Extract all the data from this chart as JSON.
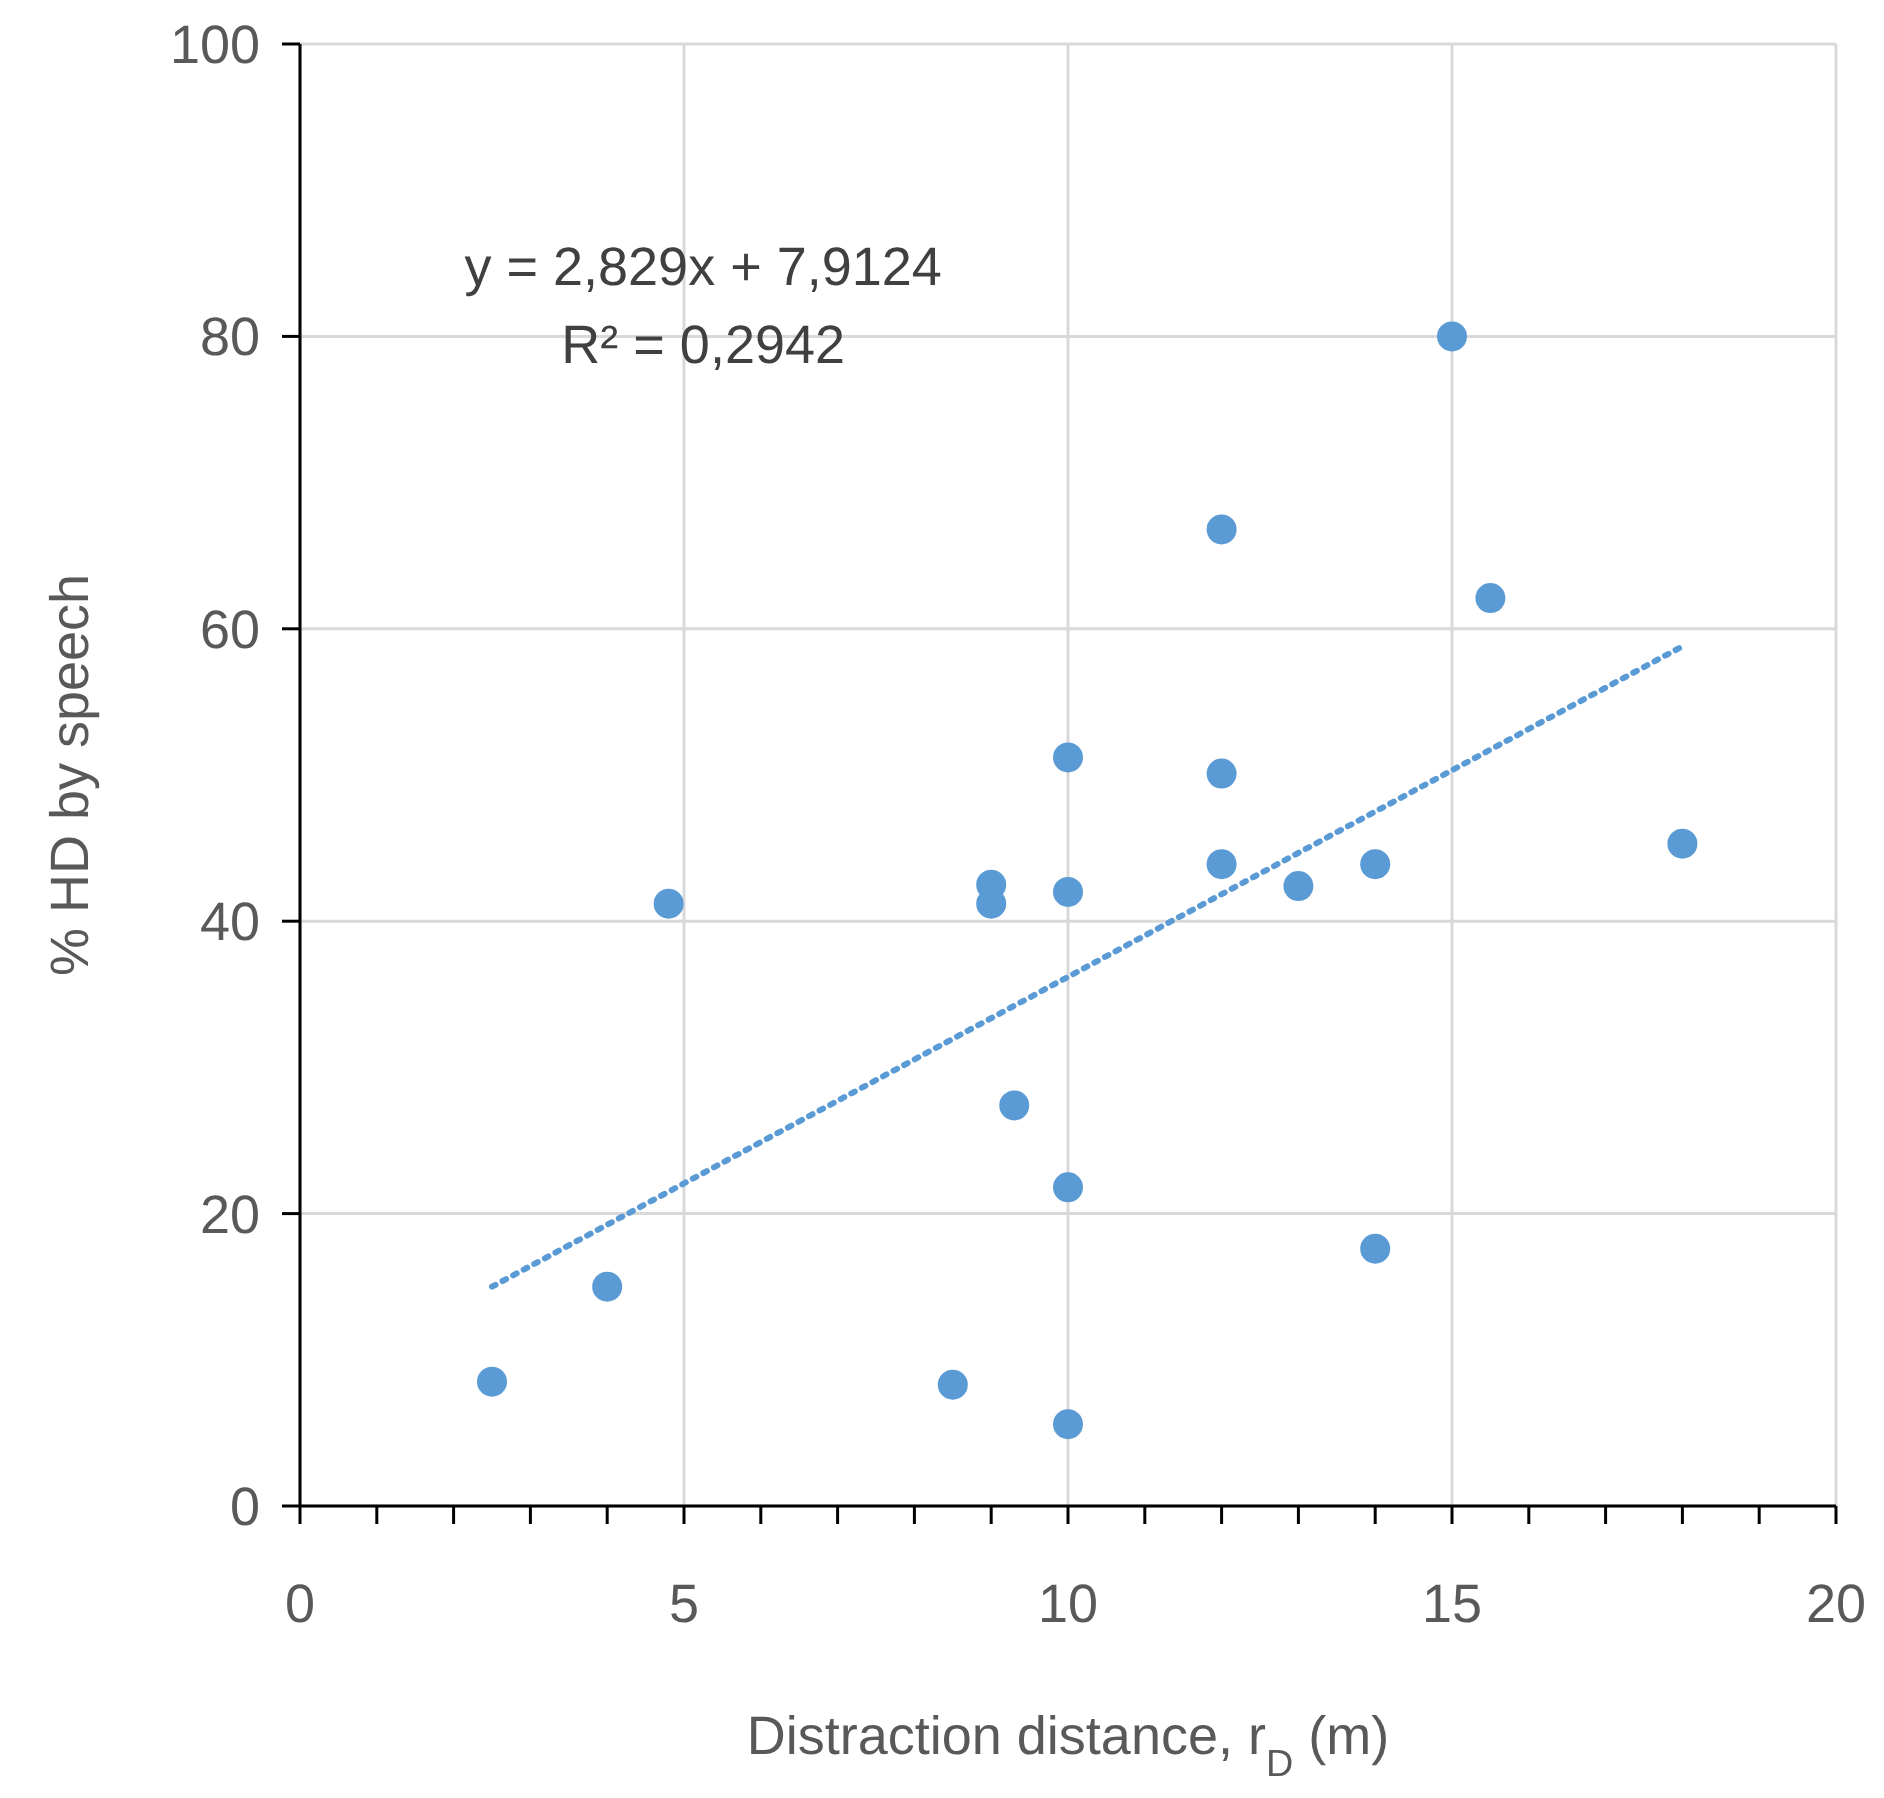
{
  "chart_data": {
    "type": "scatter",
    "xlabel": "Distraction distance, r$_{D}$ (m)",
    "ylabel": "% HD by speech",
    "annotations": [
      "y = 2,829x + 7,9124",
      "R² = 0,2942"
    ],
    "xlim": [
      0,
      20
    ],
    "ylim": [
      0,
      100
    ],
    "xticks": [
      0,
      {
        "value": 1,
        "label": null
      },
      {
        "value": 2,
        "label": null
      },
      {
        "value": 3,
        "label": null
      },
      {
        "value": 4,
        "label": null
      },
      5,
      {
        "value": 6,
        "label": null
      },
      {
        "value": 7,
        "label": null
      },
      {
        "value": 8,
        "label": null
      },
      {
        "value": 9,
        "label": null
      },
      10,
      {
        "value": 11,
        "label": null
      },
      {
        "value": 12,
        "label": null
      },
      {
        "value": 13,
        "label": null
      },
      {
        "value": 14,
        "label": null
      },
      15,
      {
        "value": 16,
        "label": null
      },
      {
        "value": 17,
        "label": null
      },
      {
        "value": 18,
        "label": null
      },
      {
        "value": 19,
        "label": null
      },
      20
    ],
    "yticks": [
      0,
      20,
      40,
      60,
      80,
      100
    ],
    "grid": true,
    "series": [
      {
        "color": "#5b9bd5",
        "marker": "circle",
        "x": [
          2.5,
          4,
          4.8,
          8.5,
          9,
          9,
          9.3,
          10,
          10,
          10,
          10,
          12,
          12,
          12,
          13,
          14,
          14,
          15,
          15.5,
          18
        ],
        "values": [
          8.5,
          15,
          41.2,
          8.3,
          42.5,
          41.2,
          27.4,
          51.2,
          42,
          21.8,
          5.6,
          66.8,
          50.1,
          43.9,
          42.4,
          43.9,
          17.6,
          80,
          62.1,
          45.3
        ]
      },
      {
        "type": "line",
        "color": "#5b9bd5",
        "line_style": "dotted",
        "marker": "none",
        "x": [
          2.5,
          18
        ],
        "values": [
          15,
          58.8
        ]
      }
    ]
  }
}
